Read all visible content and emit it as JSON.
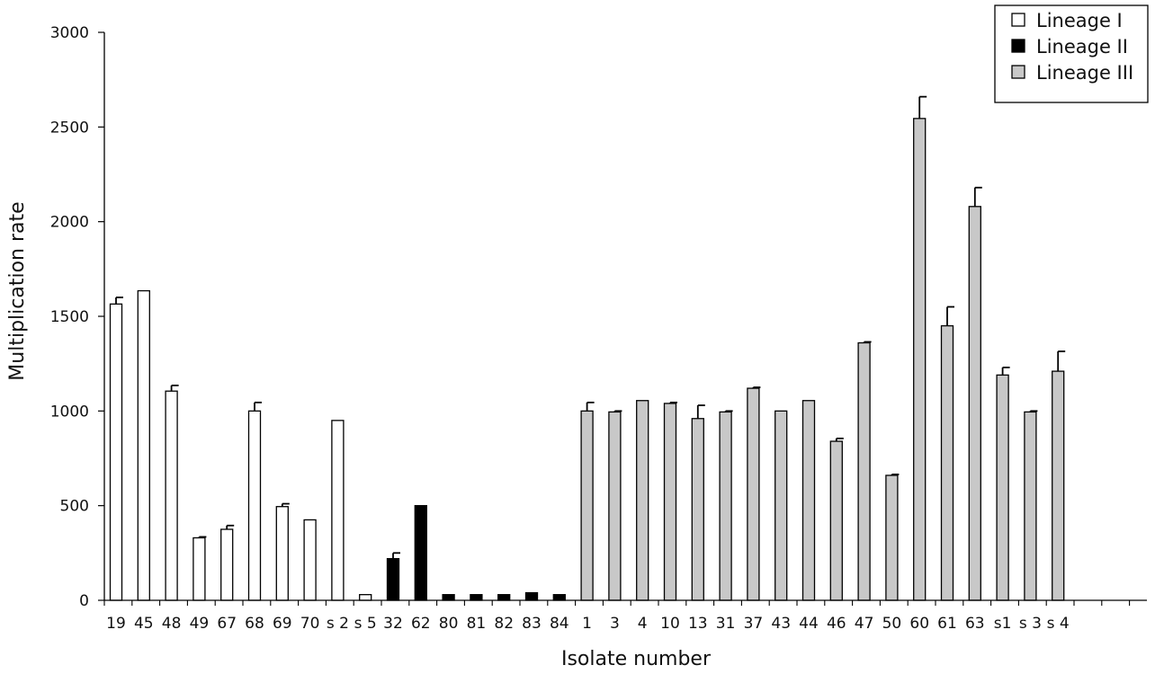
{
  "chart_data": {
    "type": "bar",
    "title": "",
    "xlabel": "Isolate number",
    "ylabel": "Multiplication rate",
    "ylim": [
      0,
      3000
    ],
    "yticks": [
      0,
      500,
      1000,
      1500,
      2000,
      2500,
      3000
    ],
    "grid": false,
    "legend_position": "top-right",
    "categories": [
      "19",
      "45",
      "48",
      "49",
      "67",
      "68",
      "69",
      "70",
      "s 2",
      "s 5",
      "32",
      "62",
      "80",
      "81",
      "82",
      "83",
      "84",
      "1",
      "3",
      "4",
      "10",
      "13",
      "31",
      "37",
      "43",
      "44",
      "46",
      "47",
      "50",
      "60",
      "61",
      "63",
      "s1",
      "s 3",
      "s 4"
    ],
    "values": [
      1565,
      1635,
      1105,
      330,
      375,
      1000,
      495,
      425,
      950,
      30,
      220,
      500,
      30,
      30,
      30,
      40,
      30,
      1000,
      995,
      1055,
      1040,
      960,
      995,
      1120,
      1000,
      1055,
      840,
      1360,
      660,
      2545,
      1450,
      2080,
      1190,
      995,
      1210
    ],
    "errors": [
      35,
      0,
      30,
      5,
      20,
      45,
      15,
      0,
      0,
      0,
      30,
      0,
      0,
      0,
      0,
      0,
      0,
      45,
      5,
      0,
      5,
      70,
      5,
      5,
      0,
      0,
      15,
      5,
      5,
      115,
      100,
      100,
      40,
      5,
      105
    ],
    "lineage": [
      "I",
      "I",
      "I",
      "I",
      "I",
      "I",
      "I",
      "I",
      "I",
      "I",
      "II",
      "II",
      "II",
      "II",
      "II",
      "II",
      "II",
      "III",
      "III",
      "III",
      "III",
      "III",
      "III",
      "III",
      "III",
      "III",
      "III",
      "III",
      "III",
      "III",
      "III",
      "III",
      "III",
      "III",
      "III"
    ],
    "series": [
      {
        "name": "Lineage I",
        "key": "I",
        "fill": "#ffffff"
      },
      {
        "name": "Lineage II",
        "key": "II",
        "fill": "#000000"
      },
      {
        "name": "Lineage III",
        "key": "III",
        "fill": "#c8c8c8"
      }
    ]
  }
}
